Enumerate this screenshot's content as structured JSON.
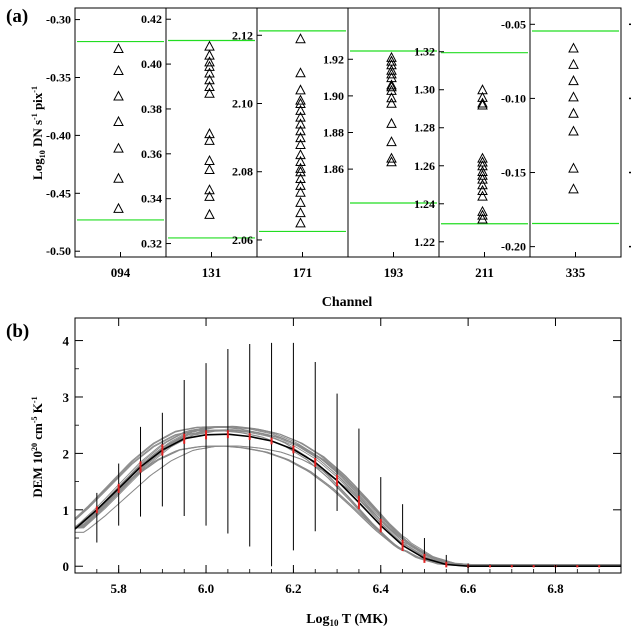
{
  "panel_a_label": "(a)",
  "panel_b_label": "(b)",
  "chart_data": [
    {
      "type": "scatter",
      "panel": "(a)",
      "ylabel": "Log10 DN s-1 pix-1",
      "ylabel_parts": {
        "pre": "Log",
        "sub": "10",
        "mid": " DN s",
        "sup1": "-1",
        "mid2": " pix",
        "sup2": "-1"
      },
      "xlabel": "Channel",
      "marker": "open triangle",
      "green_lines": "upper and lower bounds in each channel",
      "grid": false,
      "channels": [
        {
          "name": "094",
          "ylim": [
            -0.505,
            -0.29
          ],
          "ticks": [
            "-0.30",
            "-0.35",
            "-0.40",
            "-0.45",
            "-0.50"
          ],
          "tick_values": [
            -0.3,
            -0.35,
            -0.4,
            -0.45,
            -0.5
          ],
          "bounds": [
            -0.473,
            -0.319
          ],
          "points": [
            -0.325,
            -0.344,
            -0.366,
            -0.388,
            -0.411,
            -0.437,
            -0.463
          ]
        },
        {
          "name": "131",
          "ylim": [
            0.314,
            0.425
          ],
          "ticks": [
            "0.42",
            "0.40",
            "0.38",
            "0.36",
            "0.34",
            "0.32"
          ],
          "tick_values": [
            0.42,
            0.4,
            0.38,
            0.36,
            0.34,
            0.32
          ],
          "bounds": [
            0.3225,
            0.4105
          ],
          "points": [
            0.408,
            0.404,
            0.401,
            0.399,
            0.396,
            0.393,
            0.39,
            0.387,
            0.369,
            0.366,
            0.357,
            0.353,
            0.344,
            0.341,
            0.333
          ]
        },
        {
          "name": "171",
          "ylim": [
            2.055,
            2.128
          ],
          "ticks": [
            "2.12",
            "2.10",
            "2.08",
            "2.06"
          ],
          "tick_values": [
            2.12,
            2.1,
            2.08,
            2.06
          ],
          "bounds": [
            2.0625,
            2.1213
          ],
          "points": [
            2.119,
            2.109,
            2.104,
            2.101,
            2.1,
            2.098,
            2.096,
            2.094,
            2.092,
            2.09,
            2.088,
            2.085,
            2.083,
            2.081,
            2.08,
            2.078,
            2.076,
            2.074,
            2.071,
            2.068,
            2.065
          ]
        },
        {
          "name": "193",
          "ylim": [
            1.812,
            1.948
          ],
          "ticks": [
            "1.92",
            "1.90",
            "1.88",
            "1.86"
          ],
          "tick_values": [
            1.92,
            1.9,
            1.88,
            1.86
          ],
          "bounds": [
            1.8415,
            1.9245
          ],
          "points": [
            1.921,
            1.919,
            1.917,
            1.914,
            1.912,
            1.91,
            1.906,
            1.905,
            1.903,
            1.899,
            1.896,
            1.885,
            1.875,
            1.866,
            1.864
          ]
        },
        {
          "name": "211",
          "ylim": [
            1.212,
            1.343
          ],
          "ticks": [
            "1.32",
            "1.30",
            "1.28",
            "1.26",
            "1.24",
            "1.22"
          ],
          "tick_values": [
            1.32,
            1.3,
            1.28,
            1.26,
            1.24,
            1.22
          ],
          "bounds": [
            1.2295,
            1.3195
          ],
          "points": [
            1.3,
            1.296,
            1.293,
            1.292,
            1.264,
            1.262,
            1.26,
            1.257,
            1.255,
            1.253,
            1.25,
            1.247,
            1.244,
            1.236,
            1.234,
            1.232
          ]
        },
        {
          "name": "335",
          "ylim": [
            -0.207,
            -0.039
          ],
          "ticks": [
            "-0.05",
            "-0.10",
            "-0.15",
            "-0.20"
          ],
          "tick_values": [
            -0.05,
            -0.1,
            -0.15,
            -0.2
          ],
          "bounds": [
            -0.1844,
            -0.0545
          ],
          "points": [
            -0.066,
            -0.077,
            -0.088,
            -0.099,
            -0.11,
            -0.122,
            -0.147,
            -0.161
          ]
        }
      ]
    },
    {
      "type": "line",
      "panel": "(b)",
      "xlabel": "Log10 T (MK)",
      "xlabel_parts": {
        "pre": "Log",
        "sub": "10",
        "post": " T (MK)"
      },
      "ylabel": "DEM 10^20 cm^-5 K^-1",
      "ylabel_parts": {
        "pre": "DEM 10",
        "sup1": "20",
        "mid": " cm",
        "sup2": "-5",
        "mid2": " K",
        "sup3": "-1"
      },
      "xlim": [
        5.7,
        6.95
      ],
      "ylim": [
        -0.12,
        4.4
      ],
      "xticks": [
        5.8,
        6.0,
        6.2,
        6.4,
        6.6,
        6.8
      ],
      "xtick_labels": [
        "5.8",
        "6.0",
        "6.2",
        "6.4",
        "6.6",
        "6.8"
      ],
      "yticks": [
        0,
        1,
        2,
        3,
        4
      ],
      "ytick_labels": [
        "0",
        "1",
        "2",
        "3",
        "4"
      ],
      "grid": false,
      "series": [
        {
          "style": "best-fit DEM (black) with red uncertainty segments and black error bars",
          "x": [
            5.7,
            5.75,
            5.8,
            5.85,
            5.9,
            5.95,
            6.0,
            6.05,
            6.1,
            6.15,
            6.2,
            6.25,
            6.3,
            6.35,
            6.4,
            6.45,
            6.5,
            6.55,
            6.6,
            6.65,
            6.7,
            6.75,
            6.8,
            6.85,
            6.9,
            6.95
          ],
          "y": [
            0.66,
            1.0,
            1.38,
            1.76,
            2.06,
            2.26,
            2.33,
            2.34,
            2.3,
            2.22,
            2.07,
            1.84,
            1.52,
            1.13,
            0.72,
            0.37,
            0.14,
            0.03,
            0.0,
            0.0,
            0.0,
            0.0,
            0.0,
            0.0,
            0.0,
            0.0
          ],
          "err_x": [
            5.75,
            5.8,
            5.85,
            5.9,
            5.95,
            6.0,
            6.05,
            6.1,
            6.15,
            6.2,
            6.25,
            6.3,
            6.35,
            6.4,
            6.45,
            6.5,
            6.55,
            6.6,
            6.65,
            6.7,
            6.75,
            6.8,
            6.85,
            6.9
          ],
          "err_lo": [
            0.42,
            0.72,
            0.88,
            1.06,
            0.89,
            0.72,
            0.58,
            0.35,
            0.0,
            0.28,
            0.62,
            0.98,
            1.18,
            0.74,
            0.4,
            0.12,
            0.0,
            0.0,
            0.0,
            0.0,
            0.0,
            0.0,
            0.0,
            0.0
          ],
          "err_hi": [
            1.3,
            1.82,
            2.47,
            2.72,
            3.3,
            3.6,
            3.85,
            3.94,
            3.96,
            3.96,
            3.62,
            3.06,
            2.44,
            1.58,
            1.1,
            0.5,
            0.2,
            0.05,
            0.03,
            0.02,
            0.02,
            0.02,
            0.02,
            0.02
          ],
          "red_half": [
            0.06,
            0.08,
            0.1,
            0.1,
            0.09,
            0.08,
            0.07,
            0.06,
            0.06,
            0.07,
            0.08,
            0.1,
            0.12,
            0.12,
            0.1,
            0.08,
            0.05,
            0.03,
            0.02,
            0.02,
            0.02,
            0.02,
            0.02,
            0.02
          ]
        },
        {
          "style": "Monte Carlo DEM realizations (gray)",
          "count": 20
        }
      ]
    }
  ]
}
